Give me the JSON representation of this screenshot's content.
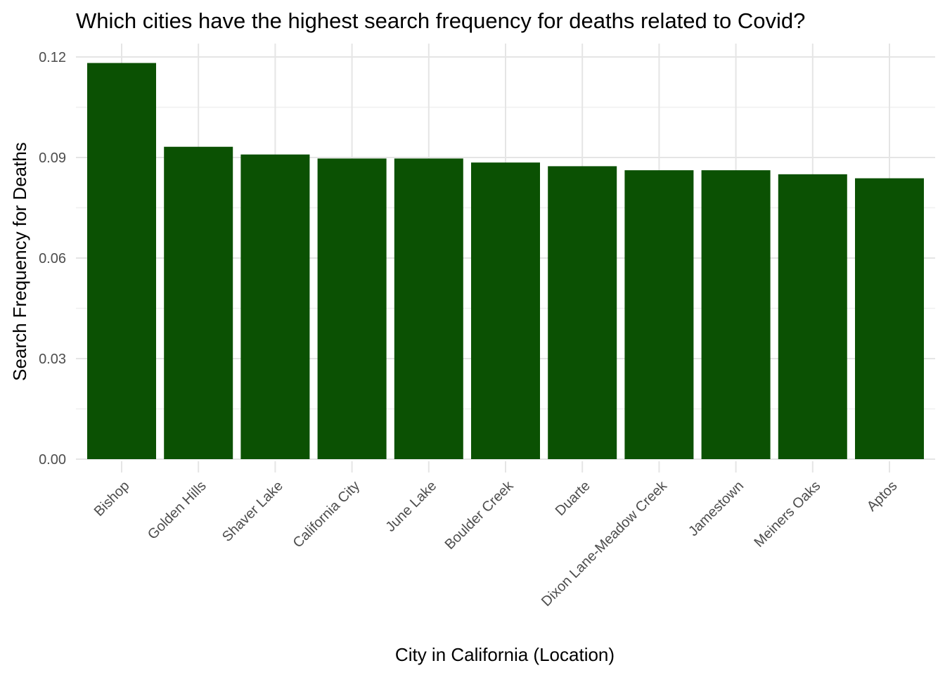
{
  "chart_data": {
    "type": "bar",
    "title": "Which cities have the highest search frequency for deaths related to Covid?",
    "xlabel": "City in California (Location)",
    "ylabel": "Search Frequency for Deaths",
    "categories": [
      "Bishop",
      "Golden Hills",
      "Shaver Lake",
      "California City",
      "June Lake",
      "Boulder Creek",
      "Duarte",
      "Dixon Lane-Meadow Creek",
      "Jamestown",
      "Meiners Oaks",
      "Aptos"
    ],
    "values": [
      0.1182,
      0.0932,
      0.0909,
      0.0897,
      0.0897,
      0.0885,
      0.0874,
      0.0862,
      0.0862,
      0.085,
      0.0838
    ],
    "ylim": [
      0,
      0.12
    ],
    "yticks": [
      "0.00",
      "0.03",
      "0.06",
      "0.09",
      "0.12"
    ],
    "bar_color": "#0b5103",
    "grid": true,
    "legend": "none"
  }
}
